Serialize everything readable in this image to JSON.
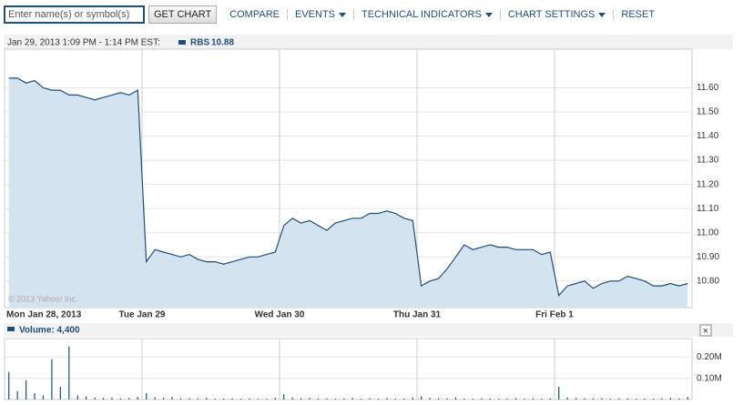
{
  "toolbar": {
    "input_placeholder": "Enter name(s) or symbol(s)",
    "get_chart": "GET CHART",
    "compare": "COMPARE",
    "events": "EVENTS",
    "technical_indicators": "TECHNICAL INDICATORS",
    "chart_settings": "CHART SETTINGS",
    "reset": "RESET"
  },
  "close_button": "×",
  "chart_data": [
    {
      "type": "area",
      "title": "Jan 29, 2013 1:09 PM - 1:14 PM EST:",
      "watermark": "© 2013 Yahoo! Inc.",
      "legend_name": "RBS",
      "legend_value": 10.88,
      "categories": [
        "Mon Jan 28, 2013",
        null,
        null,
        null,
        null,
        null,
        null,
        null,
        null,
        null,
        null,
        null,
        null,
        null,
        null,
        null,
        "Tue Jan 29",
        null,
        null,
        null,
        null,
        null,
        null,
        null,
        null,
        null,
        null,
        null,
        null,
        null,
        null,
        null,
        "Wed Jan 30",
        null,
        null,
        null,
        null,
        null,
        null,
        null,
        null,
        null,
        null,
        null,
        null,
        null,
        null,
        null,
        "Thu Jan 31",
        null,
        null,
        null,
        null,
        null,
        null,
        null,
        null,
        null,
        null,
        null,
        null,
        null,
        null,
        null,
        "Fri Feb 1",
        null,
        null,
        null,
        null,
        null,
        null,
        null,
        null,
        null,
        null,
        null,
        null,
        null,
        null,
        null
      ],
      "series": [
        {
          "name": "RBS",
          "color": "#1f4e79",
          "fill": "#d3e3ef",
          "values": [
            11.64,
            11.64,
            11.62,
            11.63,
            11.6,
            11.59,
            11.59,
            11.57,
            11.57,
            11.56,
            11.55,
            11.56,
            11.57,
            11.58,
            11.57,
            11.59,
            10.88,
            10.93,
            10.92,
            10.91,
            10.9,
            10.91,
            10.89,
            10.88,
            10.88,
            10.87,
            10.88,
            10.89,
            10.9,
            10.9,
            10.91,
            10.92,
            11.03,
            11.06,
            11.04,
            11.05,
            11.03,
            11.01,
            11.04,
            11.05,
            11.06,
            11.06,
            11.08,
            11.08,
            11.09,
            11.08,
            11.06,
            11.05,
            10.78,
            10.8,
            10.81,
            10.85,
            10.9,
            10.95,
            10.93,
            10.94,
            10.95,
            10.94,
            10.94,
            10.93,
            10.93,
            10.93,
            10.91,
            10.92,
            10.74,
            10.78,
            10.79,
            10.8,
            10.77,
            10.79,
            10.8,
            10.8,
            10.82,
            10.81,
            10.8,
            10.78,
            10.78,
            10.79,
            10.78,
            10.79
          ]
        }
      ],
      "ylim": [
        10.69,
        11.76
      ],
      "yticks": [
        {
          "value": 10.8,
          "label": "10.80"
        },
        {
          "value": 10.9,
          "label": "10.90"
        },
        {
          "value": 11.0,
          "label": "11.00"
        },
        {
          "value": 11.1,
          "label": "11.10"
        },
        {
          "value": 11.2,
          "label": "11.20"
        },
        {
          "value": 11.3,
          "label": "11.30"
        },
        {
          "value": 11.4,
          "label": "11.40"
        },
        {
          "value": 11.5,
          "label": "11.50"
        },
        {
          "value": 11.6,
          "label": "11.60"
        }
      ],
      "grid": true
    },
    {
      "type": "bar",
      "title": "Volume: 4,400",
      "color": "#1f4e79",
      "values": [
        130000,
        40000,
        90000,
        30000,
        20000,
        190000,
        60000,
        250000,
        20000,
        15000,
        10000,
        8000,
        10000,
        5000,
        8000,
        12000,
        30000,
        10000,
        8000,
        12000,
        5000,
        6000,
        5000,
        8000,
        4000,
        5000,
        6000,
        4000,
        5000,
        3000,
        4000,
        8000,
        25000,
        10000,
        6000,
        8000,
        5000,
        6000,
        4000,
        5000,
        7000,
        4000,
        6000,
        5000,
        8000,
        4000,
        5000,
        10000,
        15000,
        8000,
        5000,
        6000,
        10000,
        5000,
        4000,
        6000,
        5000,
        4000,
        5000,
        6000,
        4000,
        5000,
        4000,
        6000,
        60000,
        10000,
        8000,
        6000,
        5000,
        7000,
        4000,
        5000,
        6000,
        4000,
        5000,
        4000,
        6000,
        8000,
        5000,
        12000
      ],
      "ylim": [
        0,
        287000
      ],
      "yticks": [
        {
          "value": 100000,
          "label": "0.10M"
        },
        {
          "value": 200000,
          "label": "0.20M"
        }
      ],
      "grid": true
    }
  ]
}
